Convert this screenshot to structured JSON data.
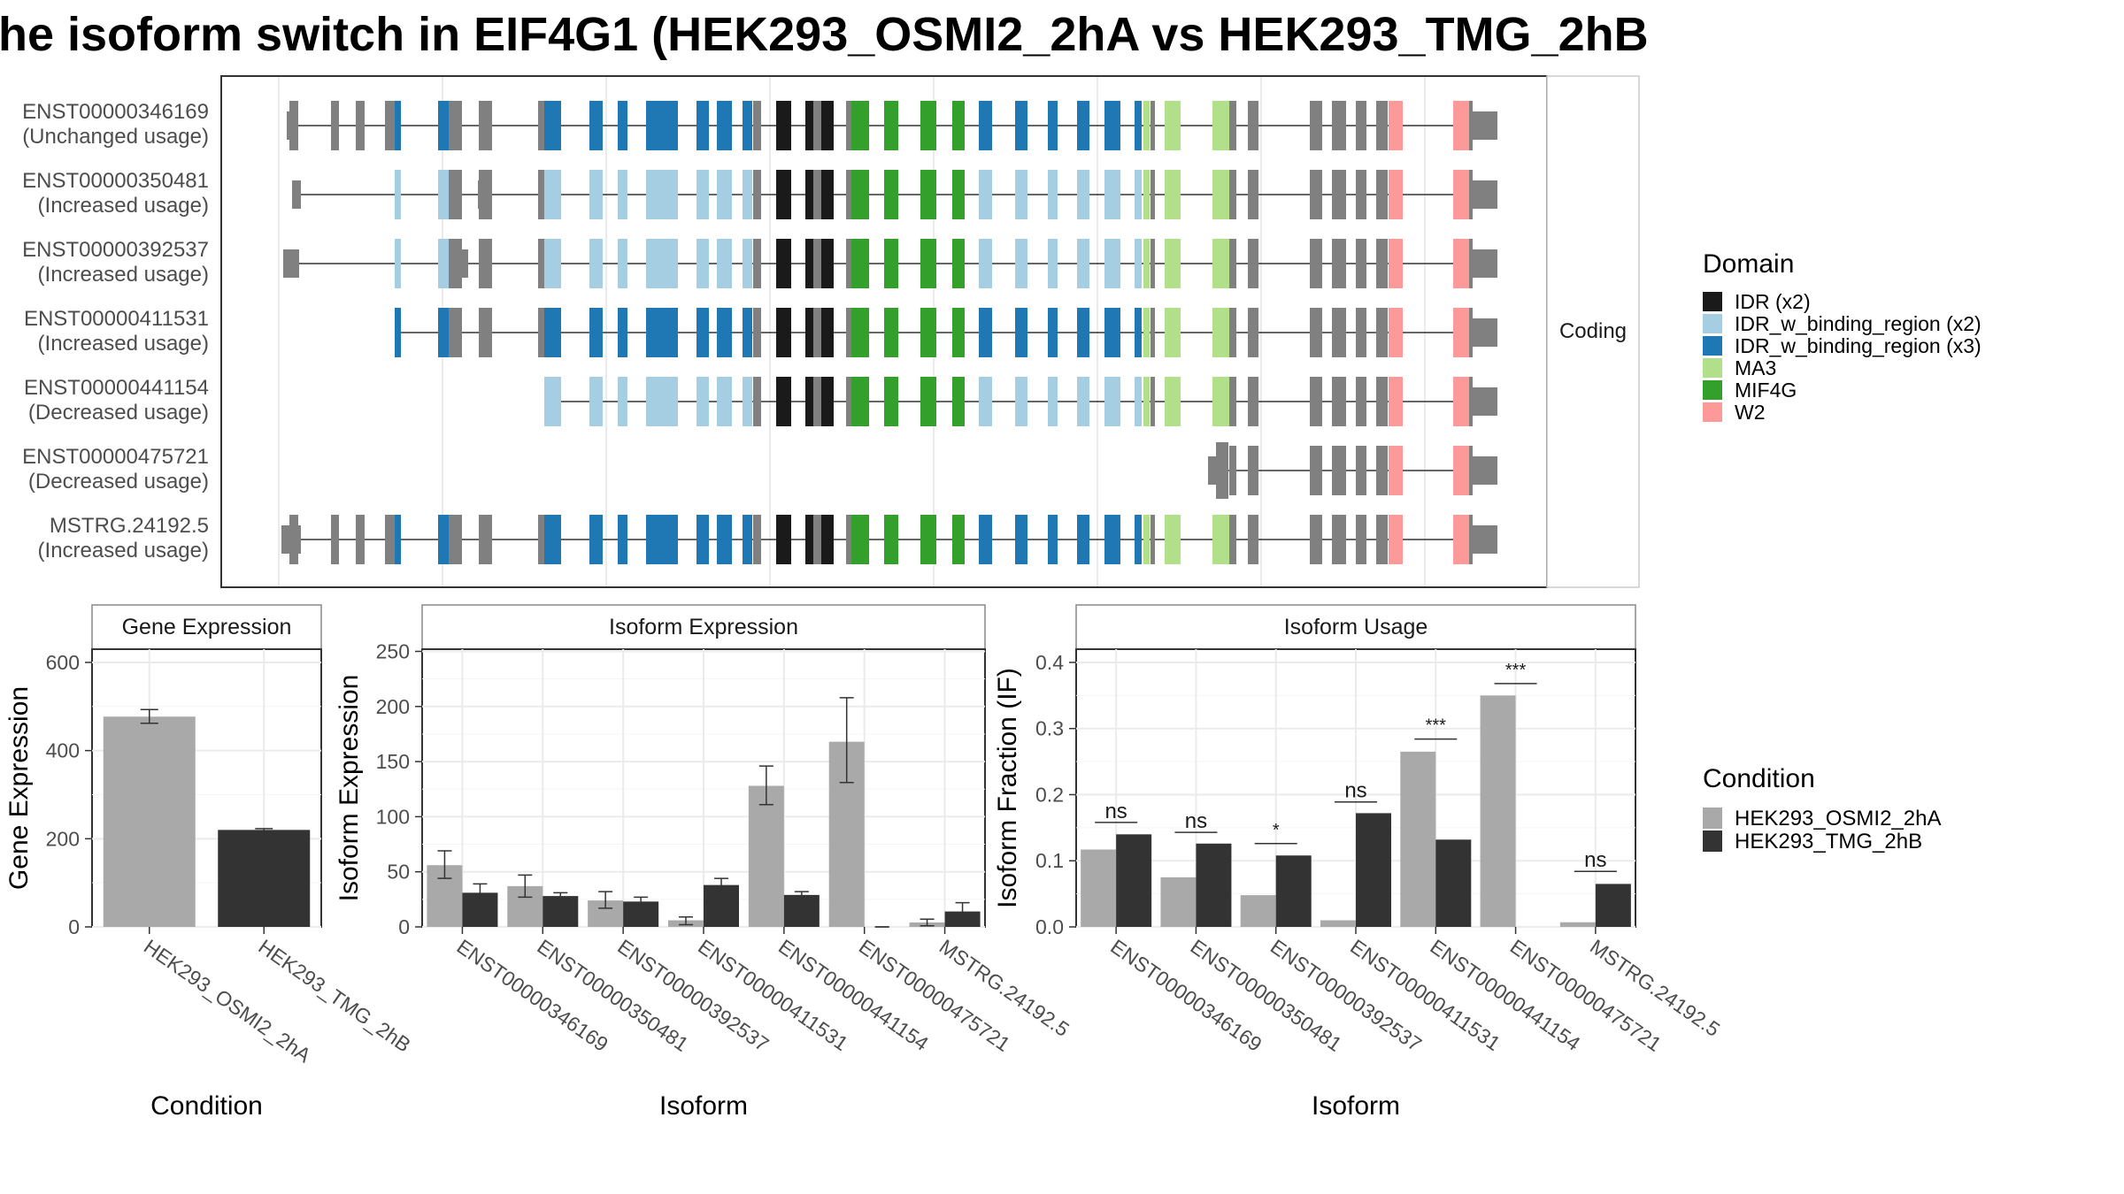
{
  "title": "he isoform switch in EIF4G1 (HEK293_OSMI2_2hA vs HEK293_TMG_2hB",
  "colors": {
    "osmi": "#a9a9a9",
    "tmg": "#333333",
    "exon_grey": "#808080",
    "IDR": "#1a1a1a",
    "IDR_w_binding_region_x2": "#a6cee3",
    "IDR_w_binding_region_x3": "#1f78b4",
    "MA3": "#b2df8a",
    "MIF4G": "#33a02c",
    "W2": "#fb9a99"
  },
  "structure_panel": {
    "strip_label": "Coding",
    "transcripts": [
      {
        "id": "ENST00000346169",
        "usage": "(Unchanged usage)",
        "first_exon": 0,
        "last_exon": 48
      },
      {
        "id": "ENST00000350481",
        "usage": "(Increased usage)",
        "first_exon": 0,
        "last_exon": 48
      },
      {
        "id": "ENST00000392537",
        "usage": "(Increased usage)",
        "first_exon": 0,
        "last_exon": 48
      },
      {
        "id": "ENST00000411531",
        "usage": "(Increased usage)",
        "first_exon": 0,
        "last_exon": 48
      },
      {
        "id": "ENST00000441154",
        "usage": "(Decreased usage)",
        "first_exon": 0,
        "last_exon": 48
      },
      {
        "id": "ENST00000475721",
        "usage": "(Decreased usage)",
        "first_exon": 0,
        "last_exon": 48
      },
      {
        "id": "MSTRG.24192.5",
        "usage": "(Increased usage)",
        "first_exon": 0,
        "last_exon": 48
      }
    ]
  },
  "legend_domain": {
    "title": "Domain",
    "items": [
      {
        "label": "IDR (x2)",
        "color": "#1a1a1a"
      },
      {
        "label": "IDR_w_binding_region (x2)",
        "color": "#a6cee3"
      },
      {
        "label": "IDR_w_binding_region (x3)",
        "color": "#1f78b4"
      },
      {
        "label": "MA3",
        "color": "#b2df8a"
      },
      {
        "label": "MIF4G",
        "color": "#33a02c"
      },
      {
        "label": "W2",
        "color": "#fb9a99"
      }
    ]
  },
  "legend_condition": {
    "title": "Condition",
    "items": [
      {
        "label": "HEK293_OSMI2_2hA",
        "color": "#a9a9a9"
      },
      {
        "label": "HEK293_TMG_2hB",
        "color": "#333333"
      }
    ]
  },
  "chart_data": [
    {
      "type": "bar",
      "title": "Gene Expression",
      "xlabel": "Condition",
      "ylabel": "Gene Expression",
      "ylim": [
        0,
        630
      ],
      "yticks": [
        0,
        200,
        400,
        600
      ],
      "categories": [
        "HEK293_OSMI2_2hA",
        "HEK293_TMG_2hB"
      ],
      "values": [
        477,
        220
      ],
      "errors": [
        [
          462,
          493
        ],
        [
          217,
          223
        ]
      ],
      "colors": [
        "#a9a9a9",
        "#333333"
      ]
    },
    {
      "type": "bar",
      "title": "Isoform Expression",
      "xlabel": "Isoform",
      "ylabel": "Isoform Expression",
      "ylim": [
        0,
        252
      ],
      "yticks": [
        0,
        50,
        100,
        150,
        200,
        250
      ],
      "categories": [
        "ENST00000346169",
        "ENST00000350481",
        "ENST00000392537",
        "ENST00000411531",
        "ENST00000441154",
        "ENST00000475721",
        "MSTRG.24192.5"
      ],
      "series": [
        {
          "name": "HEK293_OSMI2_2hA",
          "values": [
            56,
            37,
            24,
            6,
            128,
            168,
            4
          ],
          "errors": [
            [
              44,
              69
            ],
            [
              27,
              47
            ],
            [
              17,
              32
            ],
            [
              2,
              9
            ],
            [
              111,
              146
            ],
            [
              131,
              208
            ],
            [
              1,
              7
            ]
          ]
        },
        {
          "name": "HEK293_TMG_2hB",
          "values": [
            31,
            28,
            23,
            38,
            29,
            0,
            14
          ],
          "errors": [
            [
              24,
              39
            ],
            [
              25,
              31
            ],
            [
              19,
              27
            ],
            [
              32,
              44
            ],
            [
              26,
              32
            ],
            [
              0,
              0
            ],
            [
              6,
              22
            ]
          ]
        }
      ]
    },
    {
      "type": "bar",
      "title": "Isoform Usage",
      "xlabel": "Isoform",
      "ylabel": "Isoform Fraction (IF)",
      "ylim": [
        0,
        0.42
      ],
      "yticks": [
        0.0,
        0.1,
        0.2,
        0.3,
        0.4
      ],
      "ytick_labels": [
        "0.0",
        "0.1",
        "0.2",
        "0.3",
        "0.4"
      ],
      "categories": [
        "ENST00000346169",
        "ENST00000350481",
        "ENST00000392537",
        "ENST00000411531",
        "ENST00000441154",
        "ENST00000475721",
        "MSTRG.24192.5"
      ],
      "series": [
        {
          "name": "HEK293_OSMI2_2hA",
          "values": [
            0.117,
            0.075,
            0.048,
            0.01,
            0.265,
            0.35,
            0.007
          ]
        },
        {
          "name": "HEK293_TMG_2hB",
          "values": [
            0.14,
            0.126,
            0.108,
            0.172,
            0.132,
            0.0,
            0.065
          ]
        }
      ],
      "significance": [
        "ns",
        "ns",
        "*",
        "ns",
        "***",
        "***",
        "ns"
      ],
      "significance_y": [
        0.158,
        0.143,
        0.126,
        0.189,
        0.284,
        0.368,
        0.084
      ]
    }
  ]
}
